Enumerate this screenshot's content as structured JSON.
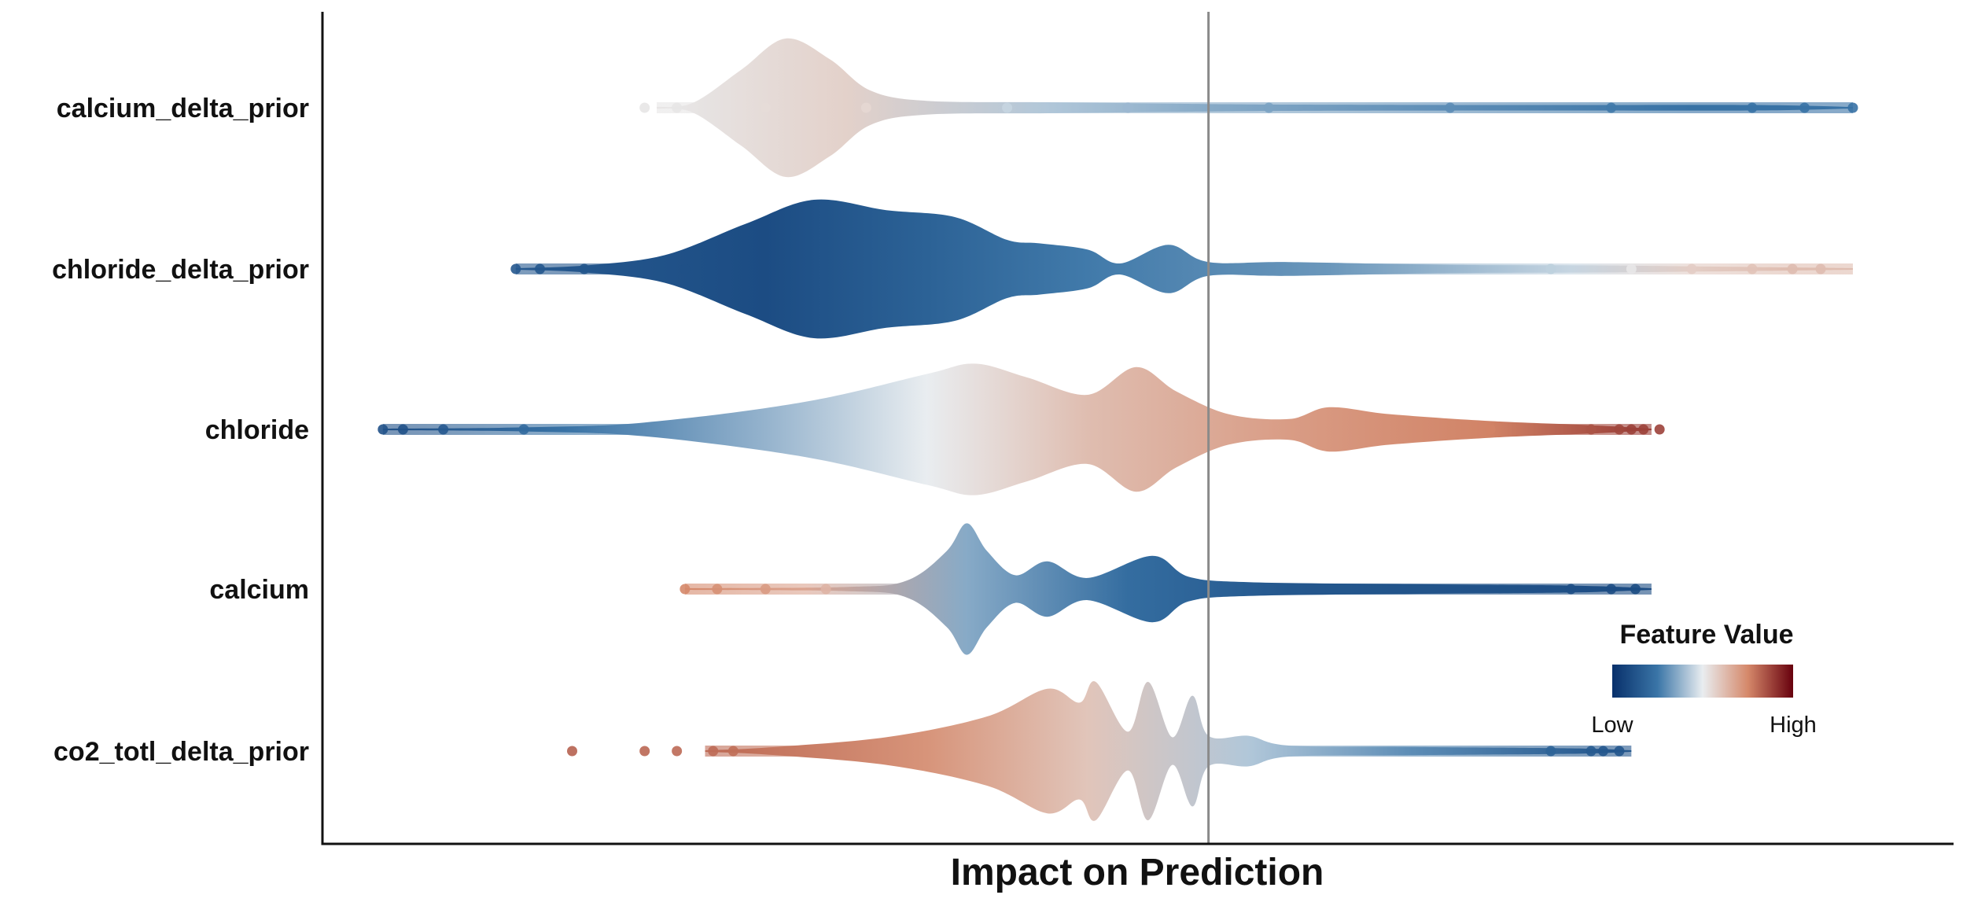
{
  "chart_data": {
    "type": "violin-beeswarm",
    "title": "",
    "xlabel": "Impact on Prediction",
    "ylabel": "",
    "grid": false,
    "reference_line": {
      "x": 0
    },
    "xlim": [
      -2.2,
      1.85
    ],
    "features": [
      {
        "name": "calcium_delta_prior",
        "points": [
          -1.4,
          -1.32,
          -1.1,
          -0.85,
          -0.5,
          -0.2,
          0.15,
          0.6,
          1.0,
          1.35,
          1.48,
          1.6
        ],
        "profile": [
          [
            -1.37,
            0.0
          ],
          [
            -1.28,
            0.07
          ],
          [
            -1.16,
            0.55
          ],
          [
            -1.05,
            1.0
          ],
          [
            -0.94,
            0.7
          ],
          [
            -0.84,
            0.25
          ],
          [
            -0.7,
            0.1
          ],
          [
            -0.4,
            0.08
          ],
          [
            -0.1,
            0.06
          ],
          [
            0.2,
            0.045
          ],
          [
            0.8,
            0.04
          ],
          [
            1.35,
            0.04
          ],
          [
            1.6,
            0.0
          ]
        ],
        "colors": [
          [
            -1.3,
            0.52
          ],
          [
            -0.9,
            0.57
          ],
          [
            -0.4,
            0.42
          ],
          [
            0.0,
            0.36
          ],
          [
            0.6,
            0.3
          ],
          [
            1.2,
            0.24
          ],
          [
            1.6,
            0.24
          ]
        ]
      },
      {
        "name": "chloride_delta_prior",
        "points": [
          -1.72,
          -1.66,
          -1.55,
          -1.45,
          -1.3,
          0.85,
          1.05,
          1.2,
          1.35,
          1.45,
          1.52
        ],
        "profile": [
          [
            -1.72,
            0.0
          ],
          [
            -1.55,
            0.05
          ],
          [
            -1.35,
            0.2
          ],
          [
            -1.15,
            0.65
          ],
          [
            -0.98,
            1.0
          ],
          [
            -0.8,
            0.85
          ],
          [
            -0.63,
            0.75
          ],
          [
            -0.5,
            0.42
          ],
          [
            -0.42,
            0.37
          ],
          [
            -0.3,
            0.28
          ],
          [
            -0.22,
            0.08
          ],
          [
            -0.1,
            0.35
          ],
          [
            0.0,
            0.1
          ],
          [
            0.2,
            0.1
          ],
          [
            0.6,
            0.06
          ],
          [
            1.0,
            0.05
          ],
          [
            1.6,
            0.0
          ]
        ],
        "colors": [
          [
            -1.7,
            0.15
          ],
          [
            -1.1,
            0.1
          ],
          [
            -0.7,
            0.18
          ],
          [
            -0.3,
            0.26
          ],
          [
            0.3,
            0.32
          ],
          [
            0.9,
            0.45
          ],
          [
            1.2,
            0.58
          ],
          [
            1.45,
            0.62
          ]
        ]
      },
      {
        "name": "chloride",
        "points": [
          -2.05,
          -2.0,
          -1.9,
          -1.7,
          0.7,
          0.95,
          1.02,
          1.05,
          1.08,
          1.12
        ],
        "profile": [
          [
            -2.05,
            0.0
          ],
          [
            -1.7,
            0.03
          ],
          [
            -1.4,
            0.1
          ],
          [
            -1.0,
            0.4
          ],
          [
            -0.7,
            0.8
          ],
          [
            -0.58,
            0.95
          ],
          [
            -0.45,
            0.75
          ],
          [
            -0.3,
            0.5
          ],
          [
            -0.18,
            0.9
          ],
          [
            -0.08,
            0.55
          ],
          [
            0.05,
            0.22
          ],
          [
            0.2,
            0.15
          ],
          [
            0.3,
            0.32
          ],
          [
            0.45,
            0.22
          ],
          [
            0.7,
            0.12
          ],
          [
            0.95,
            0.06
          ],
          [
            1.1,
            0.0
          ]
        ],
        "colors": [
          [
            -2.0,
            0.12
          ],
          [
            -1.6,
            0.24
          ],
          [
            -1.1,
            0.38
          ],
          [
            -0.7,
            0.5
          ],
          [
            -0.3,
            0.62
          ],
          [
            0.2,
            0.7
          ],
          [
            0.7,
            0.76
          ],
          [
            1.05,
            0.88
          ]
        ]
      },
      {
        "name": "calcium",
        "points": [
          -1.3,
          -1.22,
          -1.1,
          -0.95,
          0.9,
          1.0,
          1.06
        ],
        "profile": [
          [
            -1.3,
            0.0
          ],
          [
            -0.9,
            0.03
          ],
          [
            -0.75,
            0.12
          ],
          [
            -0.65,
            0.55
          ],
          [
            -0.6,
            0.95
          ],
          [
            -0.55,
            0.55
          ],
          [
            -0.48,
            0.2
          ],
          [
            -0.4,
            0.4
          ],
          [
            -0.3,
            0.16
          ],
          [
            -0.14,
            0.48
          ],
          [
            -0.05,
            0.18
          ],
          [
            0.1,
            0.1
          ],
          [
            0.5,
            0.07
          ],
          [
            0.9,
            0.05
          ],
          [
            1.1,
            0.0
          ]
        ],
        "colors": [
          [
            -1.3,
            0.75
          ],
          [
            -1.0,
            0.68
          ],
          [
            -0.6,
            0.36
          ],
          [
            -0.2,
            0.22
          ],
          [
            0.2,
            0.14
          ],
          [
            0.8,
            0.12
          ],
          [
            1.06,
            0.1
          ]
        ]
      },
      {
        "name": "co2_totl_delta_prior",
        "points": [
          -1.58,
          -1.4,
          -1.32,
          -1.23,
          -1.18,
          0.85,
          0.95,
          0.98,
          1.02
        ],
        "profile": [
          [
            -1.25,
            0.0
          ],
          [
            -1.1,
            0.05
          ],
          [
            -0.8,
            0.2
          ],
          [
            -0.55,
            0.5
          ],
          [
            -0.4,
            0.9
          ],
          [
            -0.32,
            0.7
          ],
          [
            -0.28,
            1.0
          ],
          [
            -0.2,
            0.28
          ],
          [
            -0.15,
            1.0
          ],
          [
            -0.09,
            0.2
          ],
          [
            -0.04,
            0.8
          ],
          [
            0.0,
            0.22
          ],
          [
            0.1,
            0.22
          ],
          [
            0.2,
            0.08
          ],
          [
            0.5,
            0.06
          ],
          [
            0.9,
            0.04
          ],
          [
            1.05,
            0.0
          ]
        ],
        "colors": [
          [
            -1.55,
            0.82
          ],
          [
            -1.2,
            0.8
          ],
          [
            -0.7,
            0.72
          ],
          [
            -0.3,
            0.6
          ],
          [
            0.1,
            0.42
          ],
          [
            0.5,
            0.3
          ],
          [
            1.0,
            0.14
          ]
        ]
      }
    ],
    "legend": {
      "title": "Feature Value",
      "low_label": "Low",
      "high_label": "High",
      "placement": "bottom-right",
      "gradient": [
        "#08306b",
        "#3a75a7",
        "#e9edf0",
        "#d5886a",
        "#67000d"
      ]
    }
  }
}
